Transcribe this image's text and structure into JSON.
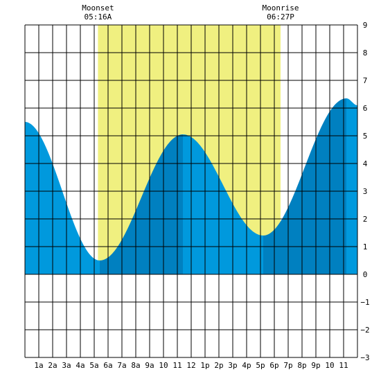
{
  "chart_data": {
    "type": "area",
    "title": "",
    "xlabel": "",
    "ylabel": "",
    "xlim": [
      0,
      24
    ],
    "ylim": [
      -3,
      9
    ],
    "x_tick_values": [
      1,
      2,
      3,
      4,
      5,
      6,
      7,
      8,
      9,
      10,
      11,
      12,
      13,
      14,
      15,
      16,
      17,
      18,
      19,
      20,
      21,
      22,
      23
    ],
    "x_tick_labels": [
      "1a",
      "2a",
      "3a",
      "4a",
      "5a",
      "6a",
      "7a",
      "8a",
      "9a",
      "10",
      "11",
      "12",
      "1p",
      "2p",
      "3p",
      "4p",
      "5p",
      "6p",
      "7p",
      "8p",
      "9p",
      "10",
      "11"
    ],
    "y_tick_values": [
      -3,
      -2,
      -1,
      0,
      1,
      2,
      3,
      4,
      5,
      6,
      7,
      8,
      9
    ],
    "y_tick_labels": [
      "−3",
      "−2",
      "−1",
      "0",
      "1",
      "2",
      "3",
      "4",
      "5",
      "6",
      "7",
      "8",
      "9"
    ],
    "grid": true,
    "moon_window": {
      "start": 5.27,
      "end": 18.45
    },
    "annotations": [
      {
        "label": "Moonset",
        "time": "05:16A",
        "x": 5.27
      },
      {
        "label": "Moonrise",
        "time": "06:27P",
        "x": 18.45
      }
    ],
    "extremes": [
      {
        "x": 0.0,
        "y": 5.5
      },
      {
        "x": 5.4,
        "y": 0.5
      },
      {
        "x": 11.4,
        "y": 5.05
      },
      {
        "x": 17.2,
        "y": 1.4
      },
      {
        "x": 23.2,
        "y": 6.35
      },
      {
        "x": 24.0,
        "y": 6.1
      }
    ],
    "colors": {
      "tide_light": "#0099dd",
      "tide_dark": "#0080c0",
      "moon_band": "#f0f080",
      "grid": "#000000"
    }
  }
}
